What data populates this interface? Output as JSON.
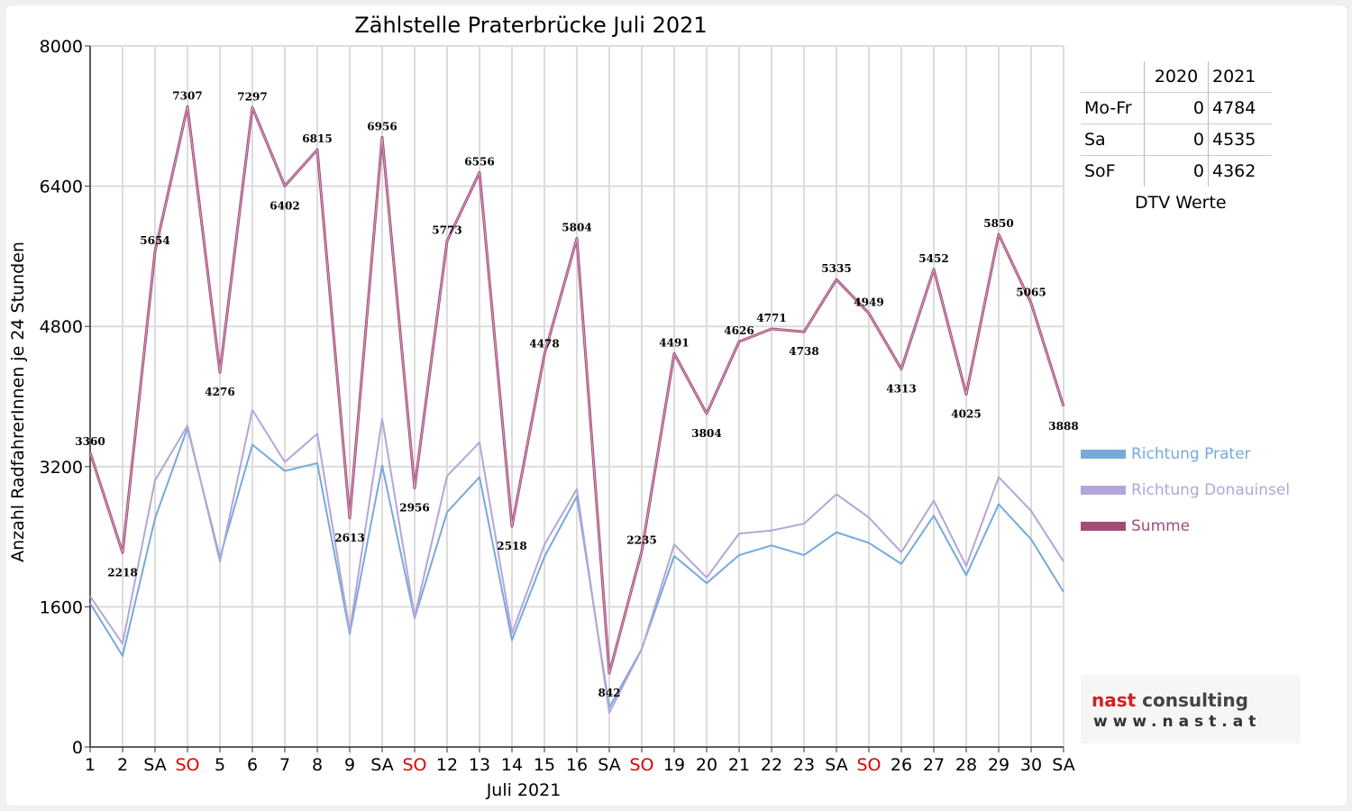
{
  "chart_data": {
    "type": "line",
    "title": "Zählstelle Praterbrücke Juli 2021",
    "xlabel": "Juli 2021",
    "ylabel": "Anzahl RadfahrerInnen je 24 Stunden",
    "ylim": [
      0,
      8000
    ],
    "yticks": [
      "0",
      "1600",
      "3200",
      "4800",
      "6400",
      "8000"
    ],
    "ytick_values": [
      0,
      1600,
      3200,
      4800,
      6400,
      8000
    ],
    "grid": true,
    "legend_position": "right",
    "categories": [
      "1",
      "2",
      "SA",
      "SO",
      "5",
      "6",
      "7",
      "8",
      "9",
      "SA",
      "SO",
      "12",
      "13",
      "14",
      "15",
      "16",
      "SA",
      "SO",
      "19",
      "20",
      "21",
      "22",
      "23",
      "SA",
      "SO",
      "26",
      "27",
      "28",
      "29",
      "30",
      "SA"
    ],
    "weekend_color": "#e00000",
    "series": [
      {
        "name": "Richtung Prater",
        "color": "#76aadb",
        "values": [
          1640,
          1040,
          2610,
          3640,
          2160,
          3450,
          3150,
          3240,
          1290,
          3210,
          1470,
          2680,
          3080,
          1220,
          2170,
          2860,
          450,
          1120,
          2180,
          1870,
          2190,
          2300,
          2190,
          2450,
          2330,
          2090,
          2640,
          1960,
          2770,
          2370,
          1770
        ]
      },
      {
        "name": "Richtung Donauinsel",
        "color": "#b3a6d8",
        "values": [
          1720,
          1178,
          3044,
          3667,
          2116,
          3847,
          3252,
          3575,
          1323,
          3746,
          1486,
          3093,
          3476,
          1298,
          2308,
          2944,
          392,
          1115,
          2311,
          1934,
          2436,
          2471,
          2548,
          2885,
          2619,
          2223,
          2812,
          2065,
          3080,
          2695,
          2118
        ]
      },
      {
        "name": "Summe",
        "color": "#a24c78",
        "values": [
          3360,
          2218,
          5654,
          7307,
          4276,
          7297,
          6402,
          6815,
          2613,
          6956,
          2956,
          5773,
          6556,
          2518,
          4478,
          5804,
          842,
          2235,
          4491,
          3804,
          4626,
          4771,
          4738,
          5335,
          4949,
          4313,
          5452,
          4025,
          5850,
          5065,
          3888
        ]
      }
    ]
  },
  "dtv_table": {
    "headers": [
      "",
      "2020",
      "2021"
    ],
    "rows": [
      {
        "label": "Mo-Fr",
        "y2020": "0",
        "y2021": "4784"
      },
      {
        "label": "Sa",
        "y2020": "0",
        "y2021": "4535"
      },
      {
        "label": "SoF",
        "y2020": "0",
        "y2021": "4362"
      }
    ],
    "caption": "DTV Werte"
  },
  "logo": {
    "name_part1": "nast",
    "name_part2": " consulting",
    "url": "www.nast.at"
  }
}
